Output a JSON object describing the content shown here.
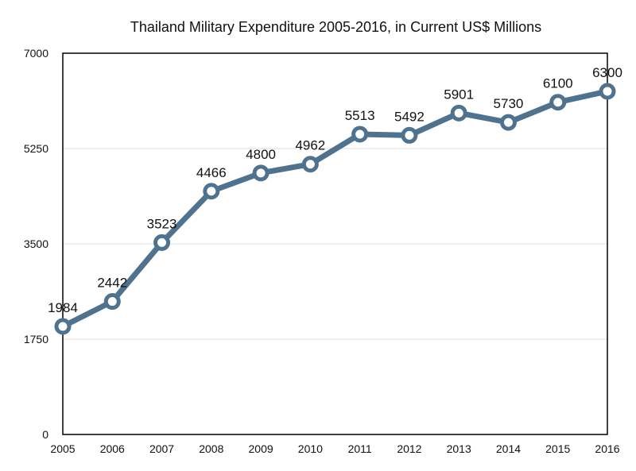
{
  "chart_data": {
    "type": "line",
    "title": "Thailand Military Expenditure 2005-2016, in Current US$ Millions",
    "xlabel": "",
    "ylabel": "",
    "x": [
      "2005",
      "2006",
      "2007",
      "2008",
      "2009",
      "2010",
      "2011",
      "2012",
      "2013",
      "2014",
      "2015",
      "2016"
    ],
    "series": [
      {
        "values": [
          1984,
          2442,
          3523,
          4466,
          4800,
          4962,
          5513,
          5492,
          5901,
          5730,
          6100,
          6300
        ]
      }
    ],
    "ylim": [
      0,
      7000
    ],
    "yticks": [
      0,
      1750,
      3500,
      5250,
      7000
    ],
    "grid": true,
    "line_color": "#4f728e"
  }
}
